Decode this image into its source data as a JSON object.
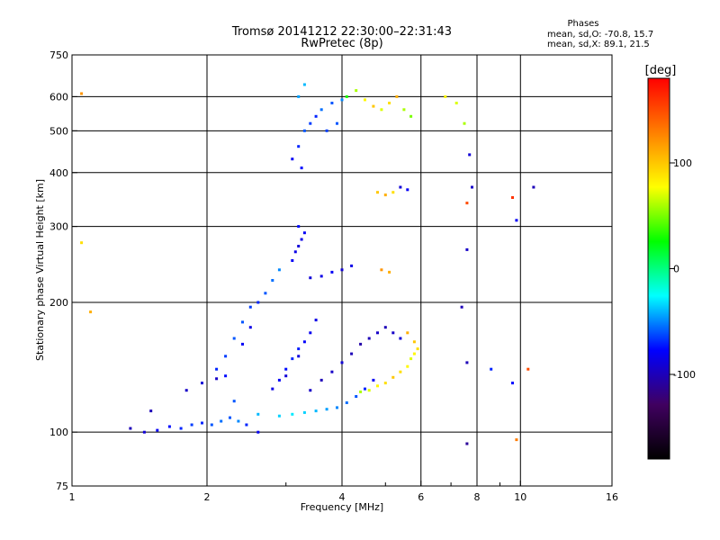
{
  "title_line1": "Tromsø 20141212 22:30:00–22:31:43",
  "title_line2": "RwPretec (8p)",
  "phases": {
    "title": "Phases",
    "o_line": "mean, sd,O: -70.8, 15.7",
    "x_line": "mean, sd,X:  89.1, 21.5"
  },
  "colorbar": {
    "unit": "[deg]",
    "range": [
      -180,
      180
    ],
    "ticks": [
      {
        "value": 100,
        "label": "100"
      },
      {
        "value": 0,
        "label": "0"
      },
      {
        "value": -100,
        "label": "-100"
      }
    ],
    "colors": [
      "#000000",
      "#400060",
      "#0000ff",
      "#00ffff",
      "#00ff00",
      "#ffff00",
      "#ff8000",
      "#ff0000"
    ]
  },
  "chart_data": {
    "type": "scatter",
    "xlabel": "Frequency [MHz]",
    "ylabel": "Stationary phase Virtual Height [km]",
    "xscale": "log",
    "yscale": "log",
    "xlim": [
      1,
      16
    ],
    "ylim": [
      75,
      750
    ],
    "grid": true,
    "x_ticks": [
      {
        "value": 1,
        "label": "1"
      },
      {
        "value": 2,
        "label": "2"
      },
      {
        "value": 4,
        "label": "4"
      },
      {
        "value": 6,
        "label": "6"
      },
      {
        "value": 8,
        "label": "8"
      },
      {
        "value": 10,
        "label": "10"
      },
      {
        "value": 16,
        "label": "16"
      }
    ],
    "x_gridlines": [
      2,
      4,
      6,
      8,
      10
    ],
    "x_minor_ticks": [
      3,
      5,
      7,
      9
    ],
    "y_ticks": [
      {
        "value": 75,
        "label": "75"
      },
      {
        "value": 100,
        "label": "100"
      },
      {
        "value": 200,
        "label": "200"
      },
      {
        "value": 300,
        "label": "300"
      },
      {
        "value": 400,
        "label": "400"
      },
      {
        "value": 500,
        "label": "500"
      },
      {
        "value": 600,
        "label": "600"
      },
      {
        "value": 750,
        "label": "750"
      }
    ],
    "y_gridlines": [
      100,
      200,
      300,
      400,
      500,
      600
    ],
    "series": [
      {
        "points": [
          [
            1.35,
            102,
            -100
          ],
          [
            1.45,
            100,
            -90
          ],
          [
            1.55,
            101,
            -80
          ],
          [
            1.65,
            103,
            -75
          ],
          [
            1.75,
            102,
            -70
          ],
          [
            1.85,
            104,
            -65
          ],
          [
            1.95,
            105,
            -70
          ],
          [
            2.05,
            104,
            -60
          ],
          [
            2.15,
            106,
            -55
          ],
          [
            2.25,
            108,
            -60
          ],
          [
            2.35,
            106,
            -50
          ],
          [
            2.45,
            104,
            -70
          ],
          [
            2.6,
            100,
            -80
          ],
          [
            1.5,
            112,
            -100
          ],
          [
            1.8,
            125,
            -95
          ],
          [
            1.95,
            130,
            -90
          ],
          [
            2.1,
            133,
            -95
          ]
        ]
      },
      {
        "points": [
          [
            2.3,
            118,
            -60
          ],
          [
            2.6,
            110,
            -40
          ],
          [
            2.9,
            109,
            -35
          ],
          [
            3.1,
            110,
            -30
          ],
          [
            3.3,
            111,
            -35
          ],
          [
            3.5,
            112,
            -40
          ],
          [
            3.7,
            113,
            -45
          ],
          [
            3.9,
            114,
            -50
          ],
          [
            4.1,
            117,
            -55
          ],
          [
            4.3,
            121,
            -60
          ],
          [
            4.5,
            126,
            -70
          ],
          [
            4.7,
            132,
            -80
          ]
        ]
      },
      {
        "points": [
          [
            2.1,
            140,
            -70
          ],
          [
            2.2,
            150,
            -65
          ],
          [
            2.3,
            165,
            -60
          ],
          [
            2.4,
            180,
            -60
          ],
          [
            2.5,
            195,
            -65
          ],
          [
            2.6,
            200,
            -70
          ],
          [
            2.7,
            210,
            -60
          ],
          [
            2.8,
            225,
            -55
          ],
          [
            2.9,
            238,
            -50
          ],
          [
            2.4,
            160,
            -80
          ],
          [
            2.5,
            175,
            -85
          ],
          [
            2.2,
            135,
            -75
          ]
        ]
      },
      {
        "points": [
          [
            2.8,
            126,
            -85
          ],
          [
            2.9,
            132,
            -80
          ],
          [
            3.0,
            140,
            -75
          ],
          [
            3.1,
            148,
            -70
          ],
          [
            3.2,
            156,
            -72
          ],
          [
            3.3,
            162,
            -78
          ],
          [
            3.4,
            170,
            -82
          ],
          [
            3.5,
            182,
            -85
          ],
          [
            3.0,
            135,
            -90
          ],
          [
            3.2,
            150,
            -88
          ]
        ]
      },
      {
        "points": [
          [
            3.4,
            125,
            -95
          ],
          [
            3.6,
            132,
            -100
          ],
          [
            3.8,
            138,
            -95
          ],
          [
            4.0,
            145,
            -90
          ],
          [
            4.2,
            152,
            -100
          ],
          [
            4.4,
            160,
            -105
          ],
          [
            4.6,
            165,
            -100
          ],
          [
            4.8,
            170,
            -95
          ],
          [
            5.0,
            175,
            -100
          ],
          [
            5.2,
            170,
            -95
          ],
          [
            5.4,
            165,
            -90
          ]
        ]
      },
      {
        "points": [
          [
            4.4,
            124,
            60
          ],
          [
            4.6,
            125,
            70
          ],
          [
            4.8,
            128,
            80
          ],
          [
            5.0,
            130,
            90
          ],
          [
            5.2,
            134,
            100
          ],
          [
            5.4,
            138,
            90
          ],
          [
            5.6,
            142,
            80
          ],
          [
            5.7,
            148,
            70
          ],
          [
            5.8,
            152,
            80
          ],
          [
            5.9,
            156,
            90
          ],
          [
            5.8,
            162,
            100
          ],
          [
            5.6,
            170,
            110
          ]
        ]
      },
      {
        "points": [
          [
            3.1,
            250,
            -80
          ],
          [
            3.15,
            262,
            -85
          ],
          [
            3.2,
            270,
            -90
          ],
          [
            3.25,
            280,
            -85
          ],
          [
            3.3,
            290,
            -80
          ],
          [
            3.2,
            300,
            -75
          ],
          [
            3.4,
            228,
            -90
          ],
          [
            3.6,
            230,
            -85
          ],
          [
            3.8,
            235,
            -80
          ],
          [
            4.0,
            238,
            -90
          ],
          [
            4.2,
            243,
            -85
          ]
        ]
      },
      {
        "points": [
          [
            3.1,
            430,
            -80
          ],
          [
            3.2,
            460,
            -70
          ],
          [
            3.3,
            500,
            -60
          ],
          [
            3.4,
            520,
            -65
          ],
          [
            3.5,
            540,
            -70
          ],
          [
            3.6,
            560,
            -55
          ],
          [
            3.8,
            580,
            -60
          ],
          [
            4.0,
            590,
            -50
          ],
          [
            3.2,
            600,
            -45
          ],
          [
            3.3,
            640,
            -40
          ],
          [
            3.7,
            500,
            -65
          ],
          [
            3.9,
            520,
            -60
          ],
          [
            3.25,
            410,
            -75
          ]
        ]
      },
      {
        "points": [
          [
            4.1,
            600,
            30
          ],
          [
            4.3,
            620,
            60
          ],
          [
            4.5,
            590,
            80
          ],
          [
            4.7,
            570,
            100
          ],
          [
            4.9,
            560,
            70
          ],
          [
            5.1,
            580,
            90
          ],
          [
            5.3,
            600,
            110
          ],
          [
            5.5,
            560,
            60
          ],
          [
            5.7,
            540,
            50
          ],
          [
            4.8,
            360,
            100
          ],
          [
            5.0,
            355,
            110
          ],
          [
            5.2,
            360,
            90
          ],
          [
            5.4,
            370,
            -90
          ],
          [
            5.6,
            365,
            -80
          ],
          [
            4.9,
            238,
            120
          ],
          [
            5.1,
            235,
            110
          ]
        ]
      },
      {
        "points": [
          [
            1.05,
            610,
            120
          ],
          [
            1.05,
            275,
            90
          ],
          [
            1.1,
            190,
            110
          ],
          [
            6.8,
            600,
            80
          ],
          [
            7.2,
            580,
            70
          ],
          [
            7.5,
            520,
            60
          ],
          [
            7.7,
            440,
            -90
          ],
          [
            7.8,
            370,
            -95
          ],
          [
            7.6,
            340,
            150
          ],
          [
            9.6,
            350,
            160
          ],
          [
            9.8,
            310,
            -80
          ],
          [
            10.7,
            370,
            -100
          ],
          [
            7.6,
            265,
            -95
          ],
          [
            7.4,
            195,
            -100
          ],
          [
            7.6,
            145,
            -100
          ],
          [
            8.6,
            140,
            -70
          ],
          [
            9.6,
            130,
            -75
          ],
          [
            10.4,
            140,
            150
          ],
          [
            7.6,
            94,
            -110
          ],
          [
            9.8,
            96,
            130
          ]
        ]
      }
    ]
  }
}
